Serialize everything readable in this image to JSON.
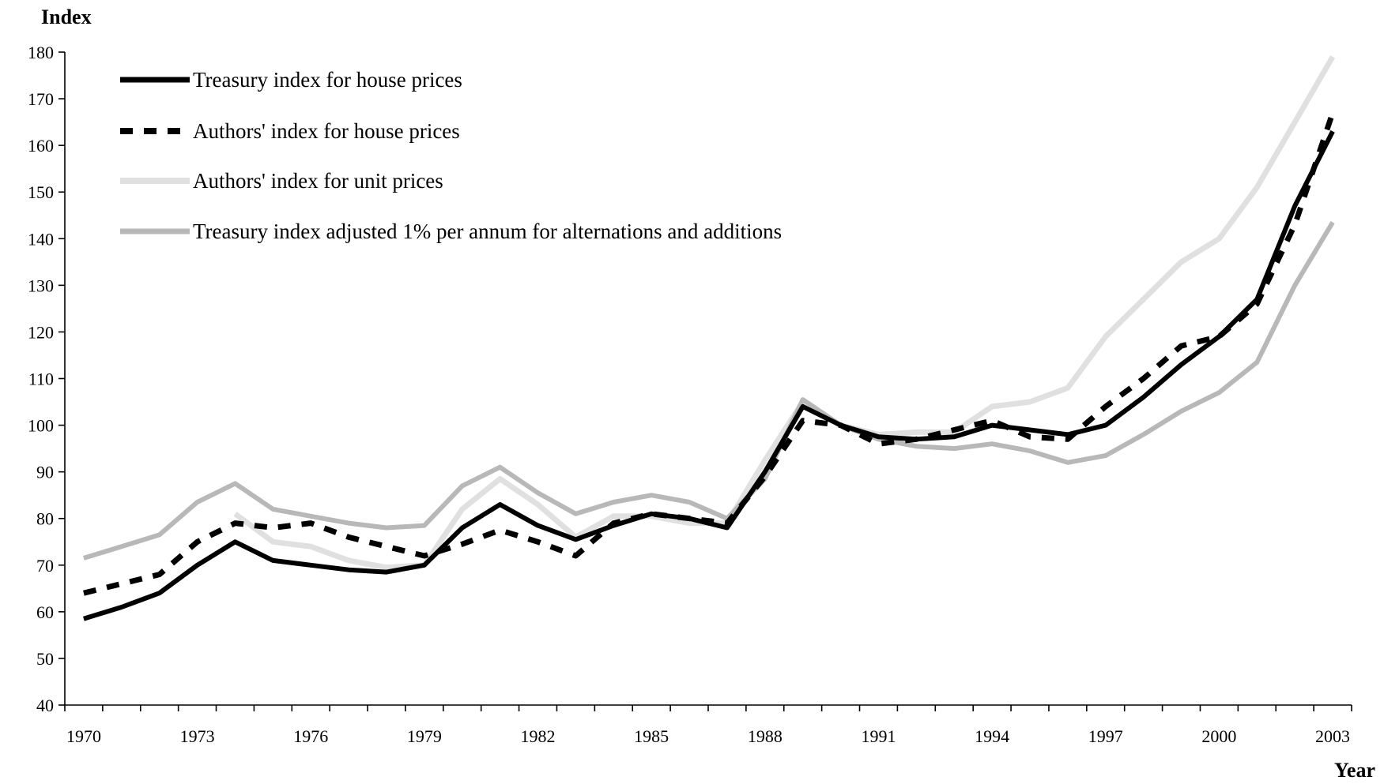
{
  "chart_data": {
    "type": "line",
    "title": "",
    "xlabel": "Year",
    "ylabel": "Index",
    "xlim": [
      1970,
      2003
    ],
    "ylim": [
      40,
      180
    ],
    "yticks": [
      40,
      50,
      60,
      70,
      80,
      90,
      100,
      110,
      120,
      130,
      140,
      150,
      160,
      170,
      180
    ],
    "xtick_labels": [
      "1970",
      "1973",
      "1976",
      "1979",
      "1982",
      "1985",
      "1988",
      "1991",
      "1994",
      "1997",
      "2000",
      "2003"
    ],
    "grid": false,
    "legend_position": "top-left",
    "x": [
      1970,
      1971,
      1972,
      1973,
      1974,
      1975,
      1976,
      1977,
      1978,
      1979,
      1980,
      1981,
      1982,
      1983,
      1984,
      1985,
      1986,
      1987,
      1988,
      1989,
      1990,
      1991,
      1992,
      1993,
      1994,
      1995,
      1996,
      1997,
      1998,
      1999,
      2000,
      2001,
      2002,
      2003
    ],
    "series": [
      {
        "name": "Treasury index for house prices",
        "color": "#000000",
        "style": "solid",
        "values": [
          58.5,
          61,
          64,
          70,
          75,
          71,
          70,
          69,
          68.5,
          70,
          78,
          83,
          78.5,
          75.5,
          78.5,
          81,
          80,
          78,
          90,
          104,
          100,
          97.5,
          97,
          97.5,
          100,
          99,
          98,
          100,
          106,
          113,
          119,
          127,
          147,
          163
        ]
      },
      {
        "name": "Authors' index for house prices",
        "color": "#000000",
        "style": "dashed",
        "values": [
          64,
          66,
          68,
          75,
          79,
          78,
          79,
          76,
          74,
          72,
          74.5,
          77.5,
          75,
          72,
          79,
          81,
          80,
          79,
          89,
          101,
          100,
          96,
          97,
          99,
          101,
          97.5,
          97,
          104,
          110,
          117,
          119,
          126,
          143,
          167
        ]
      },
      {
        "name": "Authors' index for unit prices",
        "color": "#e0e0e0",
        "style": "solid",
        "values": [
          null,
          null,
          null,
          null,
          81,
          75,
          74,
          71,
          69.5,
          70,
          82,
          88.5,
          83,
          76,
          80.5,
          80.5,
          79,
          79,
          92.5,
          105,
          100,
          98,
          98.5,
          98.5,
          104,
          105,
          108,
          119,
          127,
          135,
          140,
          151,
          165,
          179
        ]
      },
      {
        "name": "Treasury index adjusted 1% per annum for alternations and additions",
        "color": "#b8b8b8",
        "style": "solid",
        "values": [
          71.5,
          74,
          76.5,
          83.5,
          87.5,
          82,
          80.5,
          79,
          78,
          78.5,
          87,
          91,
          85.5,
          81,
          83.5,
          85,
          83.5,
          80,
          88.5,
          105.5,
          100,
          97,
          95.5,
          95,
          96,
          94.5,
          92,
          93.5,
          98,
          103,
          107,
          113.5,
          130,
          143.5
        ]
      }
    ]
  }
}
